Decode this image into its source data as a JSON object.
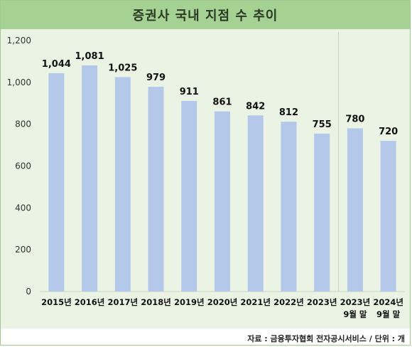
{
  "title": "증권사 국내 지점 수 추이",
  "source": "자료 : 금융투자협회 전자공시서비스 / 단위 : 개",
  "colors": {
    "header": "#a5d193",
    "plot_bg": "#eaf3e4",
    "bar": "#b4c8e9",
    "frame": "#9fc98f"
  },
  "chart_data": {
    "type": "bar",
    "title": "증권사 국내 지점 수 추이",
    "categories": [
      "2015년",
      "2016년",
      "2017년",
      "2018년",
      "2019년",
      "2020년",
      "2021년",
      "2022년",
      "2023년",
      "2023년 9월 말",
      "2024년 9월 말"
    ],
    "category_lines": [
      [
        "2015년"
      ],
      [
        "2016년"
      ],
      [
        "2017년"
      ],
      [
        "2018년"
      ],
      [
        "2019년"
      ],
      [
        "2020년"
      ],
      [
        "2021년"
      ],
      [
        "2022년"
      ],
      [
        "2023년"
      ],
      [
        "2023년",
        "9월 말"
      ],
      [
        "2024년",
        "9월 말"
      ]
    ],
    "values": [
      1044,
      1081,
      1025,
      979,
      911,
      861,
      842,
      812,
      755,
      780,
      720
    ],
    "value_labels": [
      "1,044",
      "1,081",
      "1,025",
      "979",
      "911",
      "861",
      "842",
      "812",
      "755",
      "780",
      "720"
    ],
    "ylim": [
      0,
      1200
    ],
    "yticks": [
      0,
      200,
      400,
      600,
      800,
      1000,
      1200
    ],
    "ytick_labels": [
      "0",
      "200",
      "400",
      "600",
      "800",
      "1,000",
      "1,200"
    ],
    "grid": false,
    "separator_after_category_index": 8,
    "xlabel": "",
    "ylabel": ""
  }
}
